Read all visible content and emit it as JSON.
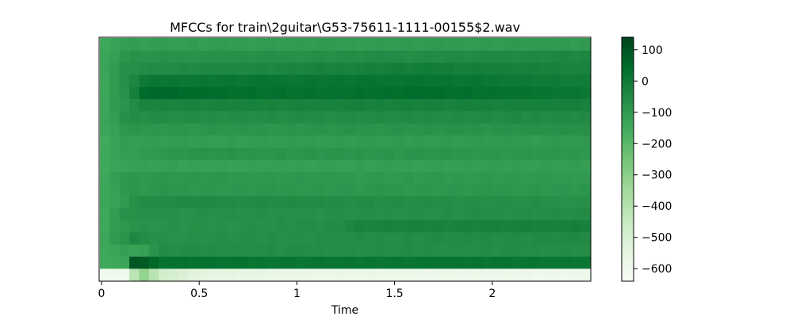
{
  "chart_data": {
    "type": "heatmap",
    "title": "MFCCs for train\\2guitar\\G53-75611-1111-00155$2.wav",
    "xlabel": "Time",
    "ylabel": "",
    "xlim": [
      0,
      2.5
    ],
    "x_ticks": [
      {
        "value": 0,
        "label": "0"
      },
      {
        "value": 0.5,
        "label": "0.5"
      },
      {
        "value": 1,
        "label": "1"
      },
      {
        "value": 1.5,
        "label": "1.5"
      },
      {
        "value": 2,
        "label": "2"
      }
    ],
    "y_ticks_shown": false,
    "colormap": "Greens",
    "colormap_stops": [
      "#f7fcf5",
      "#e5f5e0",
      "#c7e9c0",
      "#a1d99b",
      "#74c476",
      "#41ab5d",
      "#238b45",
      "#006d2c",
      "#00441b"
    ],
    "colorbar": {
      "min": -640,
      "max": 140,
      "ticks": [
        {
          "value": 100,
          "label": "100"
        },
        {
          "value": 0,
          "label": "0"
        },
        {
          "value": -100,
          "label": "−100"
        },
        {
          "value": -200,
          "label": "−200"
        },
        {
          "value": -300,
          "label": "−300"
        },
        {
          "value": -400,
          "label": "−400"
        },
        {
          "value": -500,
          "label": "−500"
        },
        {
          "value": -600,
          "label": "−600"
        }
      ]
    },
    "n_frames": 50,
    "n_coefficients": 20,
    "coefficients_bottom_to_top": [
      {
        "coef": 0,
        "base": -590,
        "profile": [
          [
            0.0,
            -600
          ],
          [
            0.14,
            -600
          ],
          [
            0.18,
            -380
          ],
          [
            0.2,
            -300
          ],
          [
            0.24,
            -330
          ],
          [
            0.3,
            -470
          ],
          [
            0.5,
            -540
          ],
          [
            1.0,
            -575
          ],
          [
            2.0,
            -590
          ],
          [
            2.5,
            -595
          ]
        ]
      },
      {
        "coef": 1,
        "base": 20,
        "profile": [
          [
            0.0,
            -150
          ],
          [
            0.14,
            -130
          ],
          [
            0.18,
            120
          ],
          [
            0.24,
            80
          ],
          [
            0.3,
            30
          ],
          [
            1.0,
            15
          ],
          [
            2.0,
            20
          ],
          [
            2.5,
            10
          ]
        ]
      },
      {
        "coef": 2,
        "base": -60,
        "profile": [
          [
            0.0,
            -150
          ],
          [
            0.14,
            -110
          ],
          [
            0.18,
            -130
          ],
          [
            0.24,
            -110
          ],
          [
            0.3,
            -60
          ],
          [
            2.5,
            -60
          ]
        ]
      },
      {
        "coef": 3,
        "base": -50,
        "profile": [
          [
            0.0,
            -150
          ],
          [
            0.14,
            -70
          ],
          [
            0.18,
            -40
          ],
          [
            0.24,
            -70
          ],
          [
            2.5,
            -50
          ]
        ]
      },
      {
        "coef": 4,
        "base": -30,
        "profile": [
          [
            0.0,
            -150
          ],
          [
            0.14,
            -80
          ],
          [
            1.2,
            -60
          ],
          [
            1.3,
            -30
          ],
          [
            2.5,
            -20
          ]
        ]
      },
      {
        "coef": 5,
        "base": -70,
        "profile": [
          [
            0.0,
            -150
          ],
          [
            0.14,
            -70
          ],
          [
            2.5,
            -60
          ]
        ]
      },
      {
        "coef": 6,
        "base": -60,
        "profile": [
          [
            0.0,
            -150
          ],
          [
            0.14,
            -100
          ],
          [
            0.18,
            -60
          ],
          [
            0.45,
            -50
          ],
          [
            2.5,
            -70
          ]
        ]
      },
      {
        "coef": 7,
        "base": -90,
        "profile": [
          [
            0.0,
            -150
          ],
          [
            0.14,
            -90
          ],
          [
            2.5,
            -90
          ]
        ]
      },
      {
        "coef": 8,
        "base": -90,
        "profile": [
          [
            0.0,
            -150
          ],
          [
            0.14,
            -90
          ],
          [
            2.5,
            -100
          ]
        ]
      },
      {
        "coef": 9,
        "base": -110,
        "profile": [
          [
            0.0,
            -150
          ],
          [
            0.14,
            -120
          ],
          [
            2.5,
            -110
          ]
        ]
      },
      {
        "coef": 10,
        "base": -90,
        "profile": [
          [
            0.0,
            -150
          ],
          [
            0.14,
            -110
          ],
          [
            0.45,
            -80
          ],
          [
            2.5,
            -90
          ]
        ]
      },
      {
        "coef": 11,
        "base": -100,
        "profile": [
          [
            0.0,
            -150
          ],
          [
            0.14,
            -110
          ],
          [
            2.5,
            -100
          ]
        ]
      },
      {
        "coef": 12,
        "base": -70,
        "profile": [
          [
            0.0,
            -150
          ],
          [
            0.14,
            -90
          ],
          [
            2.5,
            -70
          ]
        ]
      },
      {
        "coef": 13,
        "base": -40,
        "profile": [
          [
            0.0,
            -150
          ],
          [
            0.14,
            -60
          ],
          [
            2.5,
            -50
          ]
        ]
      },
      {
        "coef": 14,
        "base": -20,
        "profile": [
          [
            0.0,
            -150
          ],
          [
            0.14,
            -70
          ],
          [
            0.24,
            -30
          ],
          [
            2.5,
            -20
          ]
        ]
      },
      {
        "coef": 15,
        "base": 30,
        "profile": [
          [
            0.0,
            -150
          ],
          [
            0.14,
            -60
          ],
          [
            0.24,
            60
          ],
          [
            0.5,
            40
          ],
          [
            1.0,
            25
          ],
          [
            1.7,
            40
          ],
          [
            2.2,
            20
          ],
          [
            2.5,
            10
          ]
        ]
      },
      {
        "coef": 16,
        "base": 0,
        "profile": [
          [
            0.0,
            -150
          ],
          [
            0.14,
            -60
          ],
          [
            0.24,
            10
          ],
          [
            1.7,
            20
          ],
          [
            2.5,
            -10
          ]
        ]
      },
      {
        "coef": 17,
        "base": -20,
        "profile": [
          [
            0.0,
            -150
          ],
          [
            0.14,
            -60
          ],
          [
            1.7,
            -10
          ],
          [
            2.5,
            -30
          ]
        ]
      },
      {
        "coef": 18,
        "base": -40,
        "profile": [
          [
            0.0,
            -150
          ],
          [
            0.14,
            -80
          ],
          [
            2.5,
            -40
          ]
        ]
      },
      {
        "coef": 19,
        "base": -100,
        "profile": [
          [
            0.0,
            -150
          ],
          [
            0.14,
            -110
          ],
          [
            2.5,
            -100
          ]
        ]
      }
    ]
  }
}
